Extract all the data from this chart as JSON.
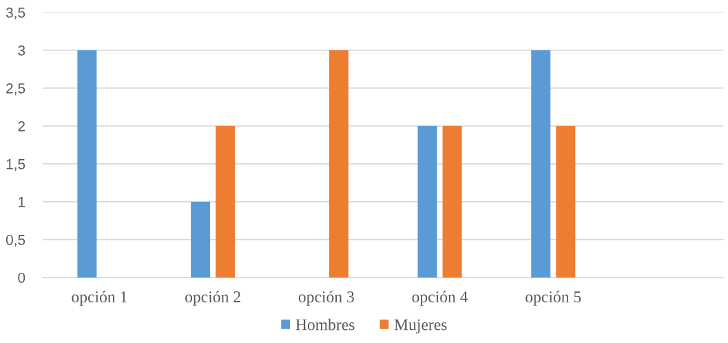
{
  "chart_data": {
    "type": "bar",
    "categories": [
      "opción 1",
      "opción 2",
      "opción 3",
      "opción 4",
      "opción 5",
      null
    ],
    "series": [
      {
        "name": "Hombres",
        "color": "#5b9bd5",
        "values": [
          3,
          1,
          null,
          2,
          3,
          null
        ]
      },
      {
        "name": "Mujeres",
        "color": "#ed7d31",
        "values": [
          null,
          2,
          3,
          2,
          2,
          null
        ]
      }
    ],
    "ylim": [
      0,
      3.5
    ],
    "yticks": [
      0,
      {
        "value": 0.5,
        "label": "0,5"
      },
      1,
      {
        "value": 1.5,
        "label": "1,5"
      },
      2,
      {
        "value": 2.5,
        "label": "2,5"
      },
      3,
      {
        "value": 3.5,
        "label": "3,5"
      }
    ],
    "grid": "y",
    "legend": "bottom"
  }
}
